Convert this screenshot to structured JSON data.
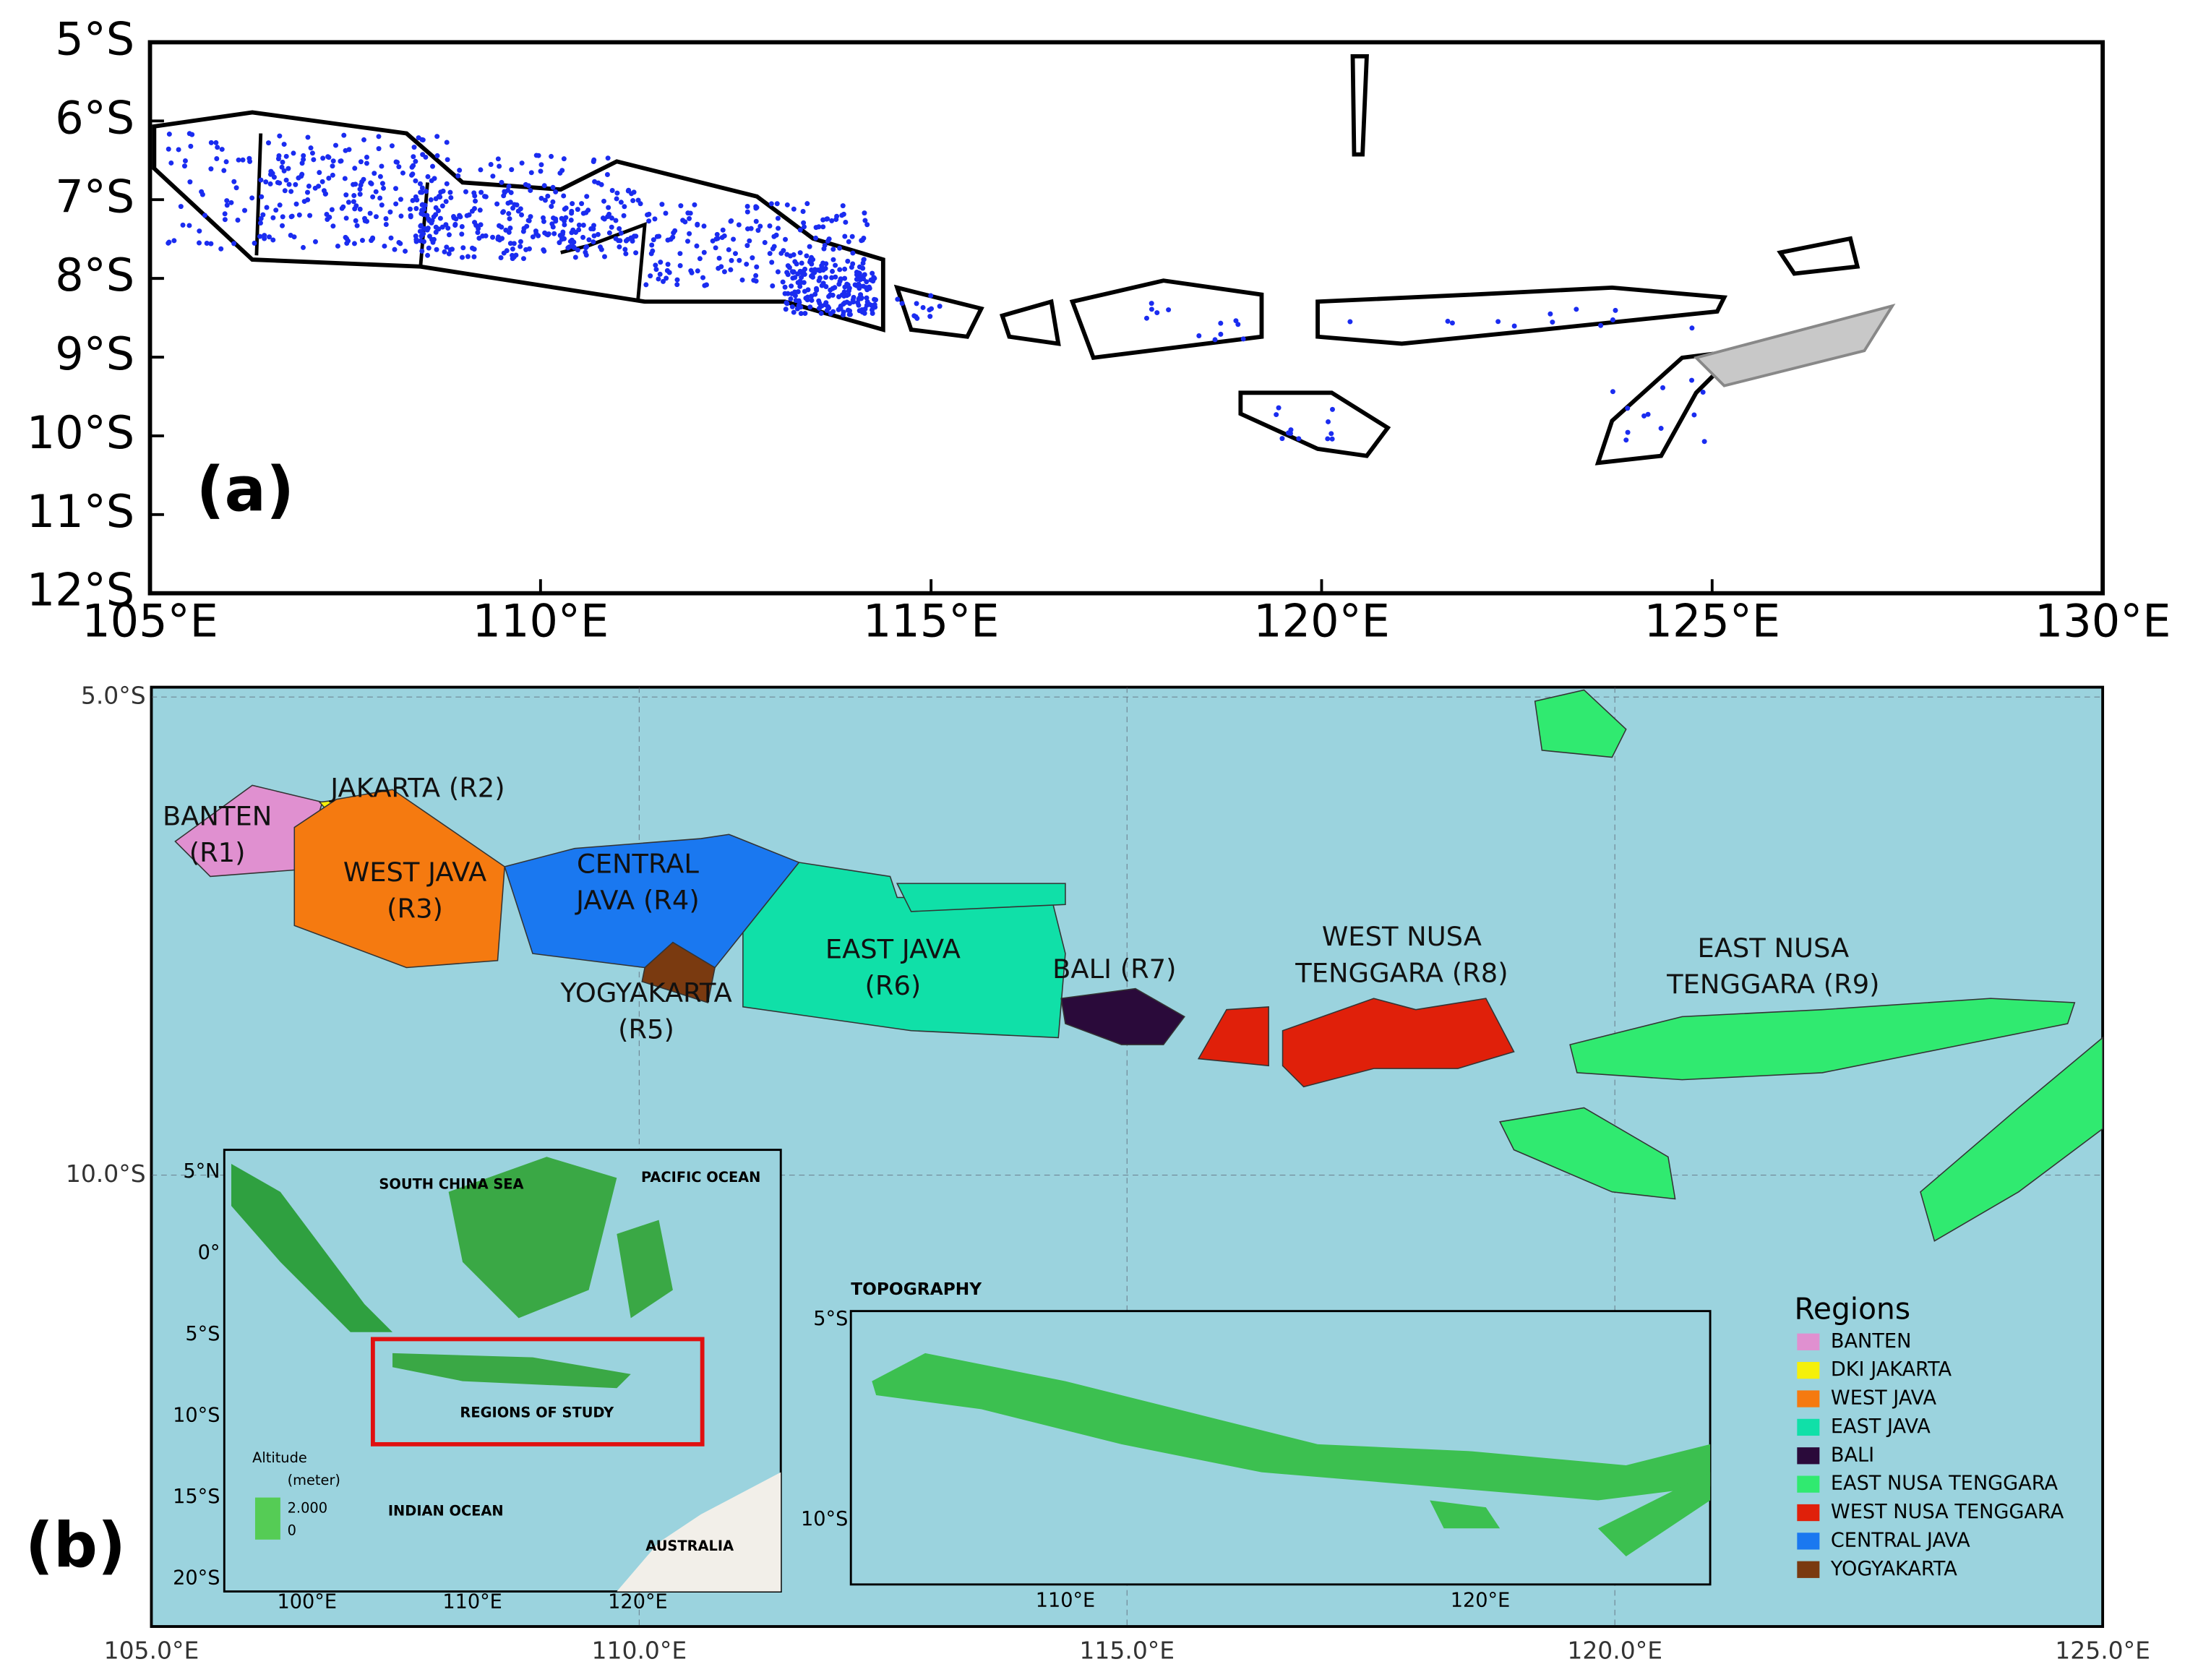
{
  "panel_a": {
    "label": "(a)",
    "lat_ticks": [
      "5°S",
      "6°S",
      "7°S",
      "8°S",
      "9°S",
      "10°S",
      "11°S",
      "12°S"
    ],
    "lon_ticks": [
      "105°E",
      "110°E",
      "115°E",
      "120°E",
      "125°E",
      "130°E"
    ]
  },
  "panel_b": {
    "label": "(b)",
    "lat_ticks": [
      "5.0°S",
      "10.0°S"
    ],
    "lon_ticks": [
      "105.0°E",
      "110.0°E",
      "115.0°E",
      "120.0°E",
      "125.0°E"
    ],
    "region_labels": [
      [
        "BANTEN",
        "(R1)"
      ],
      [
        "JAKARTA (R2)"
      ],
      [
        "WEST JAVA",
        "(R3)"
      ],
      [
        "CENTRAL",
        "JAVA (R4)"
      ],
      [
        "YOGYAKARTA",
        "(R5)"
      ],
      [
        "EAST JAVA",
        "(R6)"
      ],
      [
        "BALI (R7)"
      ],
      [
        "WEST NUSA",
        "TENGGARA (R8)"
      ],
      [
        "EAST NUSA",
        "TENGGARA (R9)"
      ]
    ],
    "inset": {
      "labels": [
        "SOUTH CHINA SEA",
        "PACIFIC OCEAN",
        "REGIONS OF STUDY",
        "INDIAN OCEAN",
        "AUSTRALIA"
      ],
      "lat_ticks": [
        "5°N",
        "0°",
        "5°S",
        "10°S",
        "15°S",
        "20°S"
      ],
      "lon_ticks": [
        "100°E",
        "110°E",
        "120°E"
      ],
      "altitude_title": "Altitude",
      "altitude_unit": "(meter)",
      "altitude_max": "2.000",
      "altitude_min": "0"
    },
    "topography": {
      "title": "TOPOGRAPHY",
      "lat_ticks": [
        "5°S",
        "10°S"
      ],
      "lon_ticks": [
        "110°E",
        "120°E"
      ]
    },
    "legend": {
      "title": "Regions",
      "items": [
        {
          "label": "BANTEN",
          "color": "#e090d0"
        },
        {
          "label": "DKI JAKARTA",
          "color": "#f5f00a"
        },
        {
          "label": "WEST JAVA",
          "color": "#f57a10"
        },
        {
          "label": "EAST JAVA",
          "color": "#10e0a8"
        },
        {
          "label": "BALI",
          "color": "#2a0a3a"
        },
        {
          "label": "EAST NUSA TENGGARA",
          "color": "#30ea70"
        },
        {
          "label": "WEST NUSA TENGGARA",
          "color": "#e0200a"
        },
        {
          "label": "CENTRAL JAVA",
          "color": "#1a78f0"
        },
        {
          "label": "YOGYAKARTA",
          "color": "#7a3a10"
        }
      ]
    }
  }
}
